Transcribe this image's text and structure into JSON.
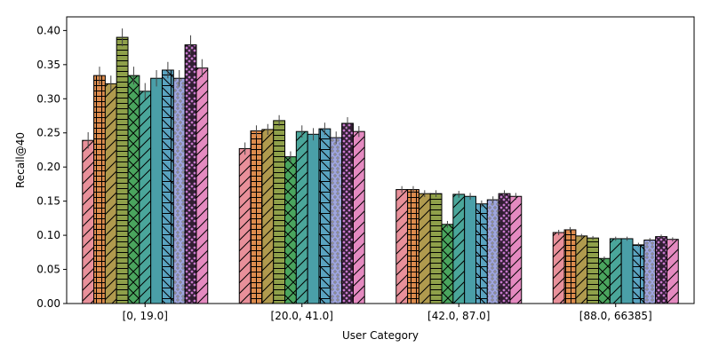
{
  "chart_data": {
    "type": "bar",
    "title": "",
    "xlabel": "User Category",
    "ylabel": "Recall@40",
    "ylim": [
      0,
      0.42
    ],
    "yticks": [
      0.0,
      0.05,
      0.1,
      0.15,
      0.2,
      0.25,
      0.3,
      0.35,
      0.4
    ],
    "grid": false,
    "legend": "none",
    "categories": [
      "[0, 19.0]",
      "[20.0, 41.0]",
      "[42.0, 87.0]",
      "[88.0, 66385]"
    ],
    "series": [
      {
        "color": "#e8909a",
        "hatch": "diag",
        "values": [
          0.239,
          0.227,
          0.167,
          0.104
        ],
        "errors": [
          0.012,
          0.009,
          0.005,
          0.004
        ]
      },
      {
        "color": "#dd8c4e",
        "hatch": "grid",
        "values": [
          0.334,
          0.253,
          0.167,
          0.108
        ],
        "errors": [
          0.013,
          0.008,
          0.005,
          0.004
        ]
      },
      {
        "color": "#b09a4e",
        "hatch": "diag",
        "values": [
          0.322,
          0.255,
          0.161,
          0.099
        ],
        "errors": [
          0.012,
          0.008,
          0.005,
          0.003
        ]
      },
      {
        "color": "#8fa04a",
        "hatch": "hline",
        "values": [
          0.39,
          0.268,
          0.161,
          0.096
        ],
        "errors": [
          0.013,
          0.008,
          0.005,
          0.003
        ]
      },
      {
        "color": "#4aa55e",
        "hatch": "cross",
        "values": [
          0.334,
          0.215,
          0.116,
          0.066
        ],
        "errors": [
          0.013,
          0.008,
          0.005,
          0.003
        ]
      },
      {
        "color": "#4aa69a",
        "hatch": "diag",
        "values": [
          0.311,
          0.252,
          0.16,
          0.095
        ],
        "errors": [
          0.012,
          0.009,
          0.005,
          0.003
        ]
      },
      {
        "color": "#4a9fa8",
        "hatch": "none",
        "values": [
          0.33,
          0.248,
          0.157,
          0.095
        ],
        "errors": [
          0.012,
          0.009,
          0.005,
          0.003
        ]
      },
      {
        "color": "#5aa3c0",
        "hatch": "gridbig",
        "values": [
          0.342,
          0.256,
          0.146,
          0.086
        ],
        "errors": [
          0.012,
          0.009,
          0.005,
          0.003
        ]
      },
      {
        "color": "#a0a6dc",
        "hatch": "dots",
        "values": [
          0.33,
          0.243,
          0.152,
          0.093
        ],
        "errors": [
          0.012,
          0.009,
          0.005,
          0.003
        ]
      },
      {
        "color": "#c678cc",
        "hatch": "dense",
        "values": [
          0.379,
          0.264,
          0.161,
          0.098
        ],
        "errors": [
          0.014,
          0.009,
          0.005,
          0.003
        ]
      },
      {
        "color": "#e48ac0",
        "hatch": "diag",
        "values": [
          0.345,
          0.252,
          0.157,
          0.094
        ],
        "errors": [
          0.013,
          0.008,
          0.005,
          0.003
        ]
      }
    ]
  }
}
